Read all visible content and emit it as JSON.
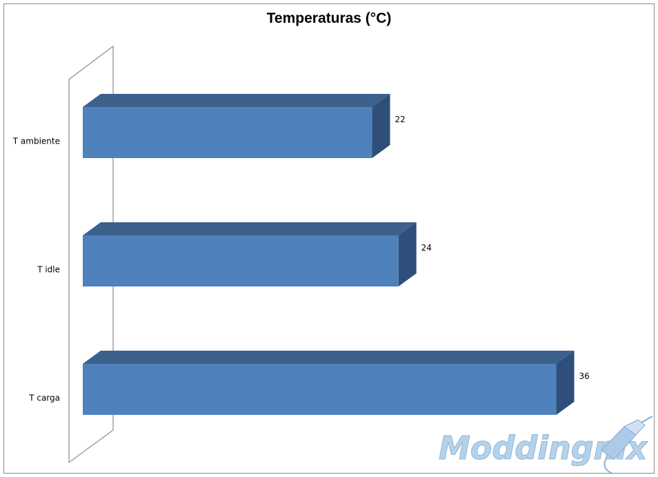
{
  "chart_data": {
    "type": "bar",
    "orientation": "horizontal",
    "style": "3d",
    "title": "Temperaturas (°C)",
    "categories": [
      "T ambiente",
      "T idle",
      "T carga"
    ],
    "values": [
      22,
      24,
      36
    ],
    "data_labels": [
      "22",
      "24",
      "36"
    ],
    "xlim": [
      0,
      38
    ],
    "grid": false,
    "legend": "none",
    "bar_color": "#4f81bd",
    "bar_top_color": "#3c618c",
    "bar_side_color": "#2f4f7a"
  },
  "watermark": {
    "text": "Moddingmx",
    "icon": "dremel-tool-icon",
    "color": "#9fc3e3"
  }
}
